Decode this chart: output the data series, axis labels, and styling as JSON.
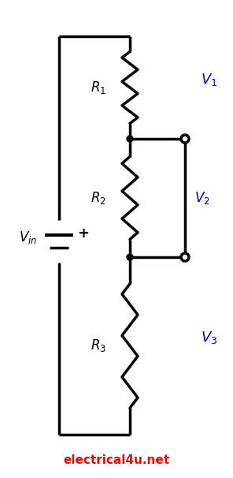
{
  "title": "electrical4u.net",
  "title_color": "#ff0000",
  "title_fontsize": 11,
  "bg_color": "#ffffff",
  "line_color": "#000000",
  "line_width": 2.5,
  "resistor_labels": [
    "R",
    "R",
    "R"
  ],
  "resistor_subscripts": [
    "1",
    "2",
    "3"
  ],
  "voltage_labels": [
    "V",
    "V",
    "V"
  ],
  "voltage_subscripts": [
    "1",
    "2",
    "3"
  ],
  "vin_label": "V",
  "vin_subscript": "in",
  "label_color": "#000000",
  "voltage_label_color": "#0000aa",
  "label_fontsize": 12
}
